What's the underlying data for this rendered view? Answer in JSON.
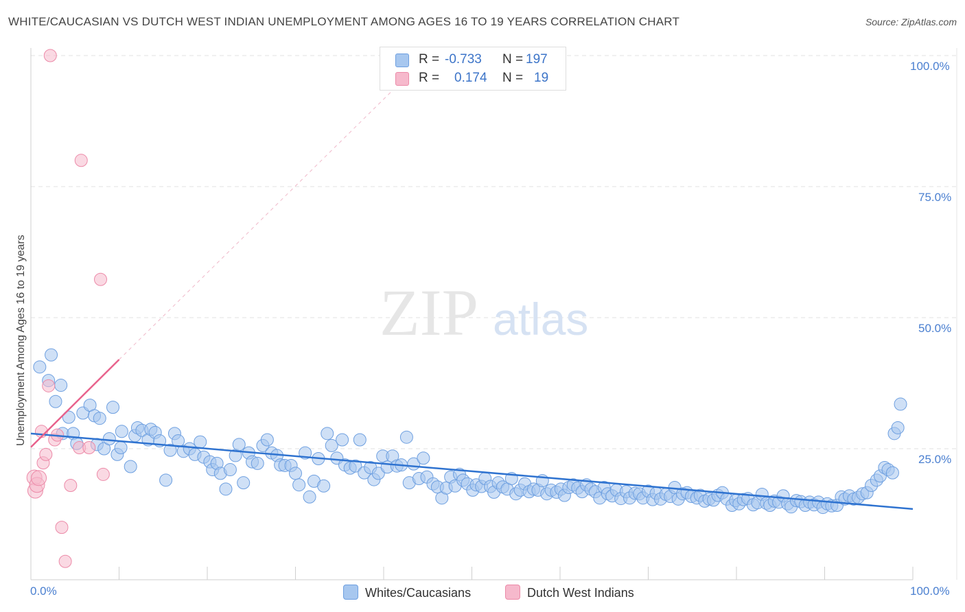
{
  "header": {
    "title": "WHITE/CAUCASIAN VS DUTCH WEST INDIAN UNEMPLOYMENT AMONG AGES 16 TO 19 YEARS CORRELATION CHART",
    "source": "Source: ZipAtlas.com"
  },
  "legend": {
    "row1": {
      "r_label": "R =",
      "r_value": "-0.733",
      "n_label": "N =",
      "n_value": "197"
    },
    "row2": {
      "r_label": "R =",
      "r_value": "0.174",
      "n_label": "N =",
      "n_value": "19"
    }
  },
  "bottom_legend": {
    "series1": "Whites/Caucasians",
    "series2": "Dutch West Indians"
  },
  "watermark": {
    "zip": "ZIP",
    "atlas": "atlas"
  },
  "chart_data": {
    "type": "scatter",
    "title": "WHITE/CAUCASIAN VS DUTCH WEST INDIAN UNEMPLOYMENT AMONG AGES 16 TO 19 YEARS CORRELATION CHART",
    "xlabel": "",
    "ylabel": "Unemployment Among Ages 16 to 19 years",
    "xlim": [
      0,
      100
    ],
    "ylim": [
      0,
      100
    ],
    "x_tick_labels": [
      "0.0%",
      "100.0%"
    ],
    "y_tick_labels": [
      "25.0%",
      "50.0%",
      "75.0%",
      "100.0%"
    ],
    "y_ticks": [
      25,
      50,
      75,
      100
    ],
    "grid": true,
    "colors": {
      "blue": "#a7c7ef",
      "blue_edge": "#6d9fe0",
      "blue_line": "#2f73d0",
      "pink": "#f6b9cc",
      "pink_edge": "#ec8aa8",
      "pink_line": "#e8628c"
    },
    "series": [
      {
        "name": "Whites/Caucasians",
        "r": -0.733,
        "n": 197,
        "trend": {
          "x": [
            0,
            100
          ],
          "y": [
            27.9,
            13.5
          ]
        },
        "points": [
          [
            1,
            40.6
          ],
          [
            2,
            38
          ],
          [
            2.3,
            42.9
          ],
          [
            2.8,
            34
          ],
          [
            3.4,
            37.1
          ],
          [
            3.6,
            27.9
          ],
          [
            4.3,
            31
          ],
          [
            4.8,
            27.9
          ],
          [
            5.2,
            26
          ],
          [
            5.9,
            31.8
          ],
          [
            6.7,
            33.3
          ],
          [
            7.2,
            31.3
          ],
          [
            7.5,
            25.8
          ],
          [
            7.8,
            30.8
          ],
          [
            8.3,
            25
          ],
          [
            8.9,
            26.9
          ],
          [
            9.3,
            32.9
          ],
          [
            9.8,
            23.9
          ],
          [
            10.2,
            25.2
          ],
          [
            10.3,
            28.3
          ],
          [
            11.3,
            21.6
          ],
          [
            11.8,
            27.5
          ],
          [
            12.1,
            29
          ],
          [
            12.6,
            28.5
          ],
          [
            13.3,
            26.7
          ],
          [
            13.6,
            28.7
          ],
          [
            14.1,
            28.1
          ],
          [
            14.6,
            26.5
          ],
          [
            15.3,
            19
          ],
          [
            15.8,
            24.7
          ],
          [
            16.3,
            27.9
          ],
          [
            16.7,
            26.5
          ],
          [
            17.3,
            24.5
          ],
          [
            18,
            25
          ],
          [
            18.6,
            23.9
          ],
          [
            19.2,
            26.3
          ],
          [
            19.6,
            23.4
          ],
          [
            20.3,
            22.5
          ],
          [
            20.6,
            21
          ],
          [
            21.1,
            22.2
          ],
          [
            21.5,
            20.3
          ],
          [
            22.1,
            17.3
          ],
          [
            22.6,
            21
          ],
          [
            23.2,
            23.7
          ],
          [
            23.6,
            25.8
          ],
          [
            24.1,
            18.5
          ],
          [
            24.7,
            24.2
          ],
          [
            25.1,
            22.5
          ],
          [
            25.7,
            22.2
          ],
          [
            26.3,
            25.6
          ],
          [
            26.8,
            26.7
          ],
          [
            27.3,
            24.2
          ],
          [
            27.9,
            23.7
          ],
          [
            28.3,
            21.9
          ],
          [
            28.8,
            21.8
          ],
          [
            29.5,
            21.8
          ],
          [
            30,
            20.3
          ],
          [
            30.4,
            18.1
          ],
          [
            31.1,
            24.2
          ],
          [
            31.6,
            15.8
          ],
          [
            32.1,
            18.8
          ],
          [
            32.6,
            23.1
          ],
          [
            33.2,
            17.9
          ],
          [
            33.6,
            27.9
          ],
          [
            34.1,
            25.6
          ],
          [
            34.7,
            23.2
          ],
          [
            35.3,
            26.7
          ],
          [
            35.6,
            21.9
          ],
          [
            36.2,
            21.3
          ],
          [
            36.8,
            21.7
          ],
          [
            37.3,
            26.7
          ],
          [
            37.8,
            20.4
          ],
          [
            38.5,
            21.4
          ],
          [
            38.9,
            19.1
          ],
          [
            39.4,
            20.3
          ],
          [
            39.9,
            23.6
          ],
          [
            40.4,
            21.5
          ],
          [
            41,
            23.6
          ],
          [
            41.5,
            21.7
          ],
          [
            42,
            21.9
          ],
          [
            42.6,
            27.2
          ],
          [
            42.9,
            18.5
          ],
          [
            43.4,
            22.1
          ],
          [
            44,
            19.3
          ],
          [
            44.5,
            23.2
          ],
          [
            44.9,
            19.6
          ],
          [
            45.6,
            18.3
          ],
          [
            46.1,
            17.7
          ],
          [
            46.6,
            15.6
          ],
          [
            47.1,
            17.5
          ],
          [
            47.6,
            19.6
          ],
          [
            48.1,
            17.9
          ],
          [
            48.6,
            20.1
          ],
          [
            49,
            19
          ],
          [
            49.5,
            18.3
          ],
          [
            50.1,
            17.1
          ],
          [
            50.5,
            18.1
          ],
          [
            51.1,
            17.8
          ],
          [
            51.5,
            19.3
          ],
          [
            52.1,
            17.8
          ],
          [
            52.5,
            16.7
          ],
          [
            53,
            18.5
          ],
          [
            53.5,
            17.7
          ],
          [
            54,
            17.3
          ],
          [
            54.5,
            19.3
          ],
          [
            55,
            16.4
          ],
          [
            55.5,
            17.1
          ],
          [
            56,
            18.3
          ],
          [
            56.5,
            16.8
          ],
          [
            57,
            17.3
          ],
          [
            57.5,
            17.1
          ],
          [
            58,
            18.9
          ],
          [
            58.5,
            16.4
          ],
          [
            59,
            17.1
          ],
          [
            59.6,
            16.7
          ],
          [
            60.1,
            17.3
          ],
          [
            60.5,
            16.1
          ],
          [
            61,
            17.6
          ],
          [
            61.5,
            18.1
          ],
          [
            62,
            17.5
          ],
          [
            62.5,
            16.8
          ],
          [
            63,
            18.1
          ],
          [
            63.5,
            17.3
          ],
          [
            64,
            16.8
          ],
          [
            64.5,
            15.6
          ],
          [
            65,
            17.6
          ],
          [
            65.4,
            16.4
          ],
          [
            65.9,
            16
          ],
          [
            66.4,
            17.1
          ],
          [
            66.9,
            15.5
          ],
          [
            67.5,
            16.8
          ],
          [
            67.9,
            15.6
          ],
          [
            68.5,
            16.5
          ],
          [
            69,
            16.4
          ],
          [
            69.4,
            15.6
          ],
          [
            70,
            16.9
          ],
          [
            70.5,
            15.3
          ],
          [
            70.9,
            16.5
          ],
          [
            71.4,
            15.4
          ],
          [
            72,
            16.3
          ],
          [
            72.5,
            15.9
          ],
          [
            73,
            17.6
          ],
          [
            73.4,
            15.4
          ],
          [
            73.9,
            16.4
          ],
          [
            74.4,
            16.6
          ],
          [
            74.9,
            15.9
          ],
          [
            75.5,
            15.6
          ],
          [
            75.9,
            16.1
          ],
          [
            76.4,
            15
          ],
          [
            76.9,
            15.4
          ],
          [
            77.4,
            15.2
          ],
          [
            77.9,
            16.1
          ],
          [
            78.4,
            16.6
          ],
          [
            78.9,
            15.4
          ],
          [
            79.5,
            14.2
          ],
          [
            79.9,
            15.1
          ],
          [
            80.3,
            14.5
          ],
          [
            80.8,
            15.3
          ],
          [
            81.3,
            15.5
          ],
          [
            81.9,
            14.3
          ],
          [
            82.4,
            14.7
          ],
          [
            82.9,
            16.3
          ],
          [
            83.4,
            14.6
          ],
          [
            83.8,
            14.2
          ],
          [
            84.3,
            15
          ],
          [
            84.8,
            14.8
          ],
          [
            85.3,
            16
          ],
          [
            85.8,
            14.5
          ],
          [
            86.2,
            13.9
          ],
          [
            86.8,
            15.1
          ],
          [
            87.3,
            14.9
          ],
          [
            87.8,
            14.2
          ],
          [
            88.3,
            14.8
          ],
          [
            88.8,
            14.3
          ],
          [
            89.3,
            14.8
          ],
          [
            89.8,
            13.8
          ],
          [
            90.3,
            14.5
          ],
          [
            90.8,
            14.1
          ],
          [
            91.4,
            14.2
          ],
          [
            91.9,
            15.8
          ],
          [
            92.3,
            15.4
          ],
          [
            92.8,
            16
          ],
          [
            93.3,
            15.4
          ],
          [
            93.8,
            15.7
          ],
          [
            94.3,
            16.4
          ],
          [
            94.8,
            16.6
          ],
          [
            95.3,
            18
          ],
          [
            95.9,
            19
          ],
          [
            96.3,
            19.8
          ],
          [
            96.8,
            21.4
          ],
          [
            97.2,
            21
          ],
          [
            97.7,
            20.4
          ],
          [
            97.9,
            27.9
          ],
          [
            98.3,
            29
          ],
          [
            98.6,
            33.5
          ]
        ]
      },
      {
        "name": "Dutch West Indians",
        "r": 0.174,
        "n": 19,
        "trend": {
          "x": [
            0,
            10
          ],
          "y": [
            25.3,
            42
          ]
        },
        "trend_extension": {
          "x": [
            10,
            42
          ],
          "y": [
            42,
            95
          ]
        },
        "points": [
          [
            0.4,
            19.5
          ],
          [
            0.5,
            17
          ],
          [
            0.7,
            18.1
          ],
          [
            0.9,
            19.4
          ],
          [
            1.2,
            28.3
          ],
          [
            1.4,
            22.3
          ],
          [
            1.7,
            23.9
          ],
          [
            2,
            37
          ],
          [
            2.2,
            100
          ],
          [
            2.7,
            26.7
          ],
          [
            3,
            27.6
          ],
          [
            3.5,
            10
          ],
          [
            3.9,
            3.5
          ],
          [
            4.5,
            18
          ],
          [
            5.5,
            25.2
          ],
          [
            5.7,
            80
          ],
          [
            6.6,
            25.2
          ],
          [
            7.9,
            57.3
          ],
          [
            8.2,
            20.1
          ]
        ]
      }
    ]
  }
}
